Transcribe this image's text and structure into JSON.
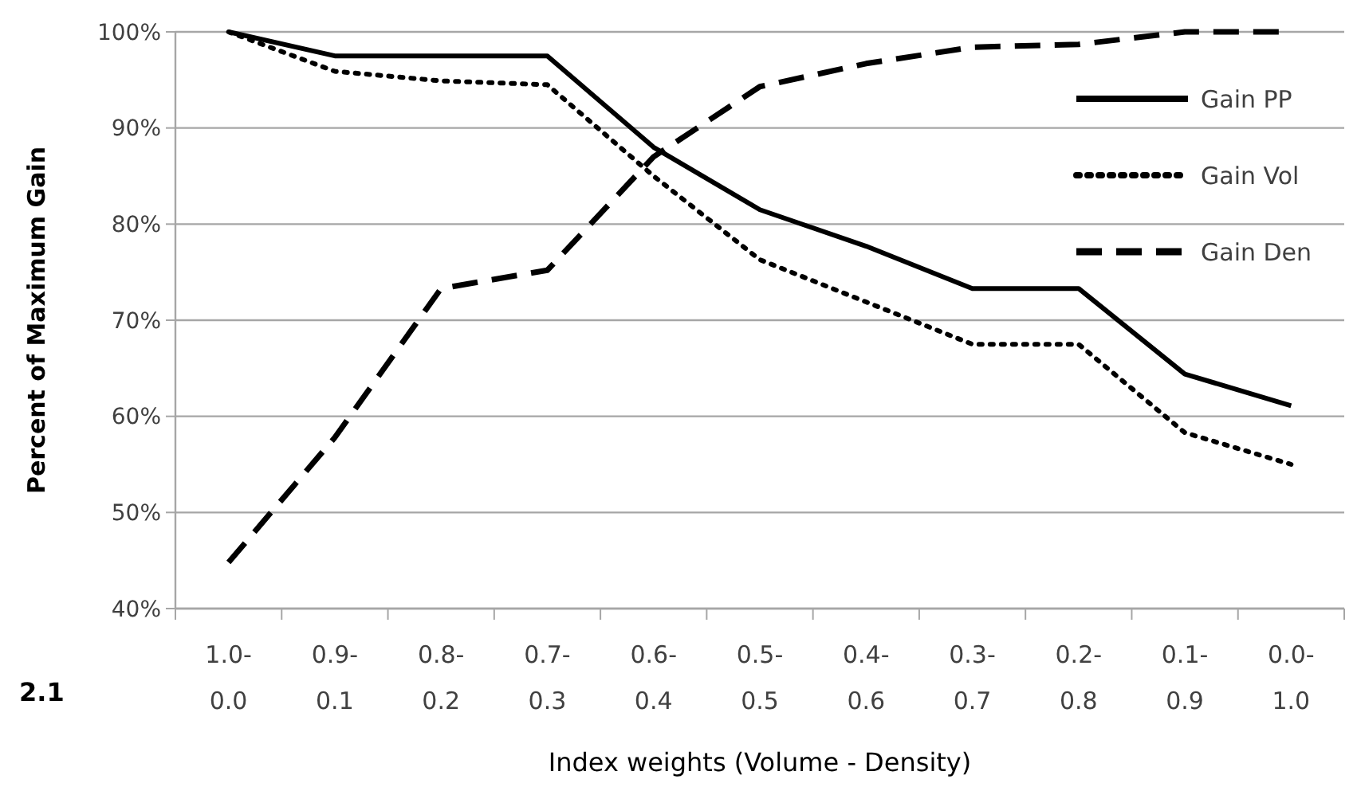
{
  "chart_data": {
    "type": "line",
    "xlabel": "Index weights (Volume - Density)",
    "ylabel": "Percent of Maximum  Gain",
    "categories": [
      "1.0-\n0.0",
      "0.9-\n0.1",
      "0.8-\n0.2",
      "0.7-\n0.3",
      "0.6-\n0.4",
      "0.5-\n0.5",
      "0.4-\n0.6",
      "0.3-\n0.7",
      "0.2-\n0.8",
      "0.1-\n0.9",
      "0.0-\n1.0"
    ],
    "series": [
      {
        "name": "Gain PP",
        "color": "#000000",
        "line_style": "solid",
        "values": [
          100,
          97.5,
          97.5,
          97.5,
          88,
          81.5,
          77.7,
          73.3,
          73.3,
          64.4,
          61.1
        ]
      },
      {
        "name": "Gain Vol",
        "color": "#000000",
        "line_style": "dotted",
        "values": [
          100,
          95.9,
          94.9,
          94.5,
          85,
          76.3,
          71.9,
          67.5,
          67.5,
          58.3,
          55
        ]
      },
      {
        "name": "Gain Den",
        "color": "#000000",
        "line_style": "dashed",
        "values": [
          44.8,
          57.8,
          73.3,
          75.2,
          87,
          94.3,
          96.7,
          98.4,
          98.7,
          100,
          100
        ]
      }
    ],
    "ylim": [
      40,
      100
    ],
    "yticks": [
      {
        "value": 40,
        "label": "40%"
      },
      {
        "value": 50,
        "label": "50%"
      },
      {
        "value": 60,
        "label": "60%"
      },
      {
        "value": 70,
        "label": "70%"
      },
      {
        "value": 80,
        "label": "80%"
      },
      {
        "value": 90,
        "label": "90%"
      },
      {
        "value": 100,
        "label": "100%"
      }
    ],
    "grid": "y",
    "legend": "top right",
    "annotations": [
      "2.1"
    ]
  }
}
